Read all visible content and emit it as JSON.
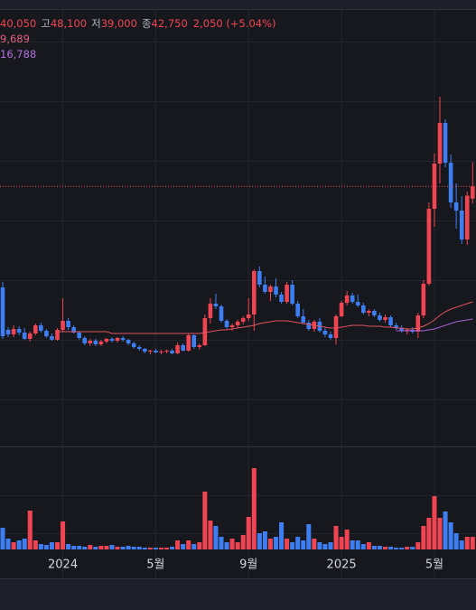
{
  "header": {
    "open": "40,050",
    "high_label": "고",
    "high": "48,100",
    "low_label": "저",
    "low": "39,000",
    "close_label": "종",
    "close": "42,750",
    "change": "2,050 (+5.04%)",
    "ma_line_1": "9,689",
    "ma_line_2": "16,788"
  },
  "chart_data": {
    "type": "candlestick",
    "categories": [
      null,
      null,
      null,
      null,
      null,
      null,
      null,
      null,
      null,
      null,
      null,
      "2024",
      null,
      null,
      null,
      null,
      null,
      null,
      null,
      null,
      null,
      null,
      null,
      null,
      null,
      null,
      null,
      null,
      "5월",
      null,
      null,
      null,
      null,
      null,
      null,
      null,
      null,
      null,
      null,
      null,
      null,
      null,
      null,
      null,
      null,
      "9월",
      null,
      null,
      null,
      null,
      null,
      null,
      null,
      null,
      null,
      null,
      null,
      null,
      null,
      null,
      null,
      null,
      "2025",
      null,
      null,
      null,
      null,
      null,
      null,
      null,
      null,
      null,
      null,
      null,
      null,
      null,
      null,
      null,
      null,
      "5월",
      null,
      null,
      null,
      null,
      null,
      null,
      null
    ],
    "open": [
      20400,
      11000,
      10000,
      11200,
      10400,
      9000,
      10200,
      12000,
      10800,
      9600,
      8800,
      11000,
      13000,
      11600,
      10400,
      9200,
      8000,
      8600,
      7800,
      8400,
      9000,
      8600,
      9200,
      8800,
      8000,
      7200,
      6800,
      6200,
      6400,
      6000,
      6200,
      6400,
      5800,
      7600,
      6400,
      9800,
      7200,
      7600,
      13600,
      16800,
      16200,
      13000,
      11600,
      12000,
      12800,
      13600,
      14400,
      24000,
      21000,
      19400,
      20600,
      18800,
      17200,
      21000,
      16800,
      14000,
      12600,
      11200,
      12800,
      10800,
      10000,
      9200,
      14000,
      17000,
      18600,
      17200,
      16400,
      14800,
      15200,
      14200,
      13200,
      13800,
      12000,
      11400,
      10800,
      11000,
      10600,
      14200,
      21200,
      37800,
      47800,
      56800,
      48000,
      39200,
      37400,
      31000,
      40050
    ],
    "high": [
      21600,
      11600,
      12000,
      11800,
      11400,
      10600,
      12400,
      12600,
      11200,
      10200,
      11400,
      18000,
      13600,
      12000,
      10800,
      9600,
      9000,
      9000,
      8800,
      9200,
      9400,
      9400,
      9600,
      9000,
      8400,
      7600,
      7000,
      6600,
      6800,
      6600,
      6600,
      6800,
      8200,
      8000,
      10200,
      10000,
      8000,
      14400,
      18000,
      19000,
      16600,
      13400,
      12400,
      13200,
      14000,
      18000,
      24400,
      25000,
      22800,
      21000,
      22400,
      19400,
      21600,
      22000,
      17400,
      15600,
      13200,
      13200,
      13600,
      11400,
      10600,
      14400,
      17400,
      19600,
      19200,
      18800,
      17000,
      15600,
      15600,
      14800,
      14400,
      14200,
      12600,
      12000,
      11400,
      11600,
      14800,
      22000,
      39200,
      50000,
      62600,
      57600,
      49800,
      43400,
      40600,
      41600,
      48100
    ],
    "low": [
      9000,
      9400,
      9400,
      9800,
      8800,
      8400,
      9800,
      10400,
      9200,
      8600,
      8600,
      10600,
      11000,
      10200,
      8800,
      7600,
      7400,
      7400,
      7400,
      8000,
      8200,
      8200,
      8400,
      7600,
      6800,
      6400,
      5800,
      5600,
      5800,
      5600,
      5800,
      5600,
      5600,
      6200,
      6200,
      6800,
      6600,
      7400,
      12400,
      15600,
      12600,
      11200,
      10800,
      11400,
      12200,
      13000,
      10800,
      20400,
      19000,
      17400,
      18200,
      16800,
      16800,
      16400,
      13600,
      12200,
      10800,
      10600,
      10400,
      9400,
      8800,
      7800,
      13800,
      16400,
      16800,
      16000,
      14400,
      14000,
      13800,
      12800,
      12600,
      11600,
      11000,
      10400,
      10000,
      10200,
      9200,
      13600,
      20800,
      33800,
      43400,
      47000,
      38000,
      33400,
      30000,
      29800,
      39000
    ],
    "close": [
      9600,
      10000,
      11200,
      10400,
      9000,
      10200,
      12000,
      10800,
      9600,
      8800,
      11000,
      13000,
      11600,
      10400,
      9200,
      8000,
      8600,
      7800,
      8400,
      9000,
      8600,
      9200,
      8800,
      8000,
      7200,
      6800,
      6200,
      6400,
      6000,
      6200,
      6400,
      5800,
      7600,
      6400,
      9800,
      7200,
      7600,
      13600,
      16800,
      16200,
      13000,
      11600,
      12000,
      12800,
      13600,
      14400,
      24000,
      21000,
      19400,
      20600,
      18800,
      17200,
      21000,
      16800,
      14000,
      12600,
      11200,
      12800,
      10800,
      10000,
      9200,
      14000,
      17000,
      18600,
      17200,
      16400,
      14800,
      15200,
      14200,
      13200,
      13800,
      12000,
      11400,
      10800,
      11000,
      10600,
      14200,
      21200,
      37800,
      47800,
      56800,
      48000,
      39200,
      37400,
      31000,
      40700,
      42750
    ],
    "volume": [
      24,
      12,
      8,
      10,
      12,
      43,
      10,
      6,
      5,
      8,
      8,
      31,
      6,
      4,
      4,
      3,
      5,
      3,
      4,
      4,
      5,
      3,
      3,
      4,
      3,
      3,
      2,
      2,
      2,
      2,
      2,
      3,
      10,
      6,
      10,
      6,
      8,
      64,
      32,
      26,
      14,
      8,
      12,
      8,
      16,
      36,
      90,
      18,
      20,
      12,
      14,
      30,
      12,
      8,
      14,
      10,
      28,
      12,
      8,
      6,
      8,
      26,
      14,
      22,
      10,
      10,
      6,
      8,
      4,
      4,
      3,
      3,
      2,
      2,
      3,
      3,
      8,
      26,
      35,
      59,
      35,
      42,
      30,
      18,
      10,
      14,
      14
    ],
    "ma": [
      {
        "color": "#e0525f",
        "values": [
          null,
          null,
          null,
          null,
          null,
          null,
          null,
          null,
          null,
          null,
          10600,
          10600,
          10600,
          10600,
          10600,
          10600,
          10600,
          10600,
          10600,
          10600,
          10200,
          10200,
          10200,
          10200,
          10200,
          10200,
          10200,
          10200,
          10200,
          10200,
          10200,
          10200,
          10200,
          10200,
          10200,
          10200,
          10200,
          10400,
          10600,
          10800,
          11000,
          11000,
          11200,
          11400,
          11600,
          11800,
          12000,
          12400,
          12600,
          12800,
          13000,
          13000,
          13000,
          12800,
          12600,
          12400,
          12200,
          12000,
          11800,
          11600,
          11400,
          11400,
          11600,
          11800,
          12000,
          12000,
          12000,
          11800,
          11800,
          11800,
          11600,
          11600,
          11400,
          11400,
          11200,
          11200,
          11400,
          11800,
          12400,
          13200,
          14200,
          15000,
          15600,
          16000,
          16400,
          16800,
          17200
        ]
      },
      {
        "color": "#a65fd8",
        "values": [
          null,
          null,
          null,
          null,
          null,
          null,
          null,
          null,
          null,
          null,
          null,
          null,
          null,
          null,
          null,
          null,
          null,
          null,
          null,
          null,
          null,
          null,
          null,
          null,
          null,
          null,
          null,
          null,
          null,
          null,
          null,
          null,
          null,
          null,
          null,
          null,
          null,
          null,
          null,
          null,
          null,
          null,
          null,
          null,
          null,
          null,
          null,
          null,
          null,
          null,
          null,
          null,
          null,
          null,
          null,
          null,
          null,
          null,
          null,
          null,
          null,
          null,
          null,
          null,
          null,
          null,
          null,
          null,
          null,
          null,
          null,
          null,
          10800,
          10800,
          10800,
          10800,
          10800,
          10800,
          11000,
          11200,
          11600,
          12000,
          12400,
          12800,
          13000,
          13200,
          13400
        ]
      }
    ],
    "up_color": "#f04452",
    "down_color": "#3d7ff2",
    "ylim": [
      -15000,
      84000
    ],
    "volume_ylim": [
      0,
      108
    ]
  }
}
